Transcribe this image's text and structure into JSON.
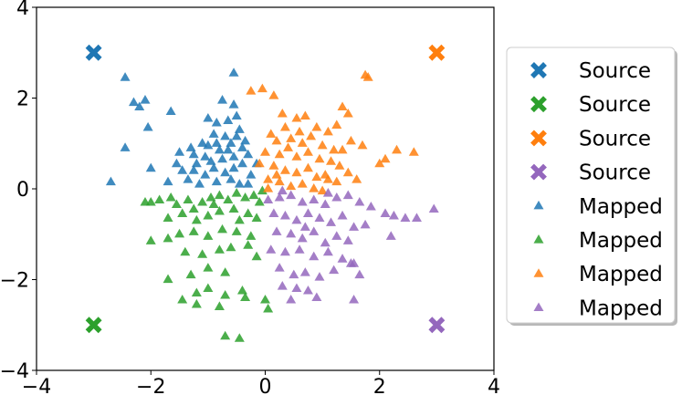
{
  "chart_data": {
    "type": "scatter",
    "xlim": [
      -4,
      4
    ],
    "ylim": [
      -4,
      4
    ],
    "xticks": [
      "−4",
      "−2",
      "0",
      "2",
      "4"
    ],
    "yticks": [
      "−4",
      "−2",
      "0",
      "2",
      "4"
    ],
    "grid": false,
    "legend_placement": "outside-right",
    "colors": {
      "blue": "#1f77b4",
      "green": "#2ca02c",
      "orange": "#ff7f0e",
      "purple": "#9467bd"
    },
    "series": [
      {
        "name": "Source",
        "marker": "x",
        "color": "#1f77b4",
        "points": [
          [
            -3,
            3
          ]
        ]
      },
      {
        "name": "Source",
        "marker": "x",
        "color": "#2ca02c",
        "points": [
          [
            -3,
            -3
          ]
        ]
      },
      {
        "name": "Source",
        "marker": "x",
        "color": "#ff7f0e",
        "points": [
          [
            3,
            3
          ]
        ]
      },
      {
        "name": "Source",
        "marker": "x",
        "color": "#9467bd",
        "points": [
          [
            3,
            -3
          ]
        ]
      },
      {
        "name": "Mapped",
        "marker": "triangle",
        "color": "#1f77b4",
        "points": [
          [
            -2.45,
            2.45
          ],
          [
            -2.3,
            1.9
          ],
          [
            -2.2,
            1.8
          ],
          [
            -2.1,
            1.95
          ],
          [
            -2.05,
            1.35
          ],
          [
            -1.65,
            1.7
          ],
          [
            -2.45,
            0.9
          ],
          [
            -2.7,
            0.15
          ],
          [
            -2.0,
            0.45
          ],
          [
            -0.55,
            2.55
          ],
          [
            -0.75,
            1.95
          ],
          [
            -0.55,
            1.85
          ],
          [
            -1.0,
            1.55
          ],
          [
            -0.85,
            1.45
          ],
          [
            -0.65,
            1.5
          ],
          [
            -0.5,
            1.6
          ],
          [
            -0.45,
            1.3
          ],
          [
            -0.9,
            1.2
          ],
          [
            -0.7,
            1.15
          ],
          [
            -1.1,
            1.0
          ],
          [
            -1.0,
            0.95
          ],
          [
            -0.8,
            0.85
          ],
          [
            -0.6,
            1.0
          ],
          [
            -0.4,
            0.9
          ],
          [
            -1.3,
            0.9
          ],
          [
            -1.5,
            0.8
          ],
          [
            -1.55,
            0.55
          ],
          [
            -1.45,
            0.4
          ],
          [
            -1.25,
            0.75
          ],
          [
            -1.2,
            0.55
          ],
          [
            -0.95,
            0.6
          ],
          [
            -0.75,
            0.65
          ],
          [
            -0.55,
            0.7
          ],
          [
            -0.35,
            1.05
          ],
          [
            -0.3,
            0.75
          ],
          [
            -1.35,
            0.2
          ],
          [
            -1.25,
            0.4
          ],
          [
            -1.05,
            0.3
          ],
          [
            -0.9,
            0.45
          ],
          [
            -0.7,
            0.35
          ],
          [
            -0.55,
            0.45
          ],
          [
            -0.4,
            0.55
          ],
          [
            -0.25,
            0.3
          ],
          [
            -0.15,
            0.55
          ],
          [
            -0.85,
            0.15
          ],
          [
            -0.6,
            0.2
          ],
          [
            -0.45,
            0.1
          ],
          [
            -1.7,
            0.15
          ],
          [
            -1.15,
            0.1
          ],
          [
            -0.3,
            0.1
          ],
          [
            -0.85,
            1.0
          ],
          [
            -0.65,
            0.85
          ],
          [
            -1.05,
            0.7
          ],
          [
            -0.5,
            1.15
          ]
        ]
      },
      {
        "name": "Mapped",
        "marker": "triangle",
        "color": "#2ca02c",
        "points": [
          [
            -2.1,
            -0.3
          ],
          [
            -2.0,
            -0.3
          ],
          [
            -1.85,
            -0.25
          ],
          [
            -1.65,
            -0.2
          ],
          [
            -1.55,
            -0.35
          ],
          [
            -1.35,
            -0.25
          ],
          [
            -1.25,
            -0.45
          ],
          [
            -1.1,
            -0.3
          ],
          [
            -0.95,
            -0.2
          ],
          [
            -0.8,
            -0.15
          ],
          [
            -0.65,
            -0.25
          ],
          [
            -0.5,
            -0.1
          ],
          [
            -0.35,
            -0.2
          ],
          [
            -0.2,
            -0.15
          ],
          [
            -0.1,
            -0.3
          ],
          [
            -1.7,
            -0.65
          ],
          [
            -1.45,
            -0.55
          ],
          [
            -1.2,
            -0.7
          ],
          [
            -1.0,
            -0.6
          ],
          [
            -0.8,
            -0.5
          ],
          [
            -0.55,
            -0.45
          ],
          [
            -0.3,
            -0.55
          ],
          [
            -0.15,
            -0.65
          ],
          [
            -2.0,
            -1.15
          ],
          [
            -1.7,
            -1.1
          ],
          [
            -1.5,
            -1.0
          ],
          [
            -1.25,
            -0.95
          ],
          [
            -1.0,
            -1.05
          ],
          [
            -0.75,
            -0.9
          ],
          [
            -0.5,
            -0.95
          ],
          [
            -0.25,
            -1.05
          ],
          [
            -1.4,
            -1.4
          ],
          [
            -1.1,
            -1.45
          ],
          [
            -0.8,
            -1.35
          ],
          [
            -0.6,
            -1.3
          ],
          [
            -0.3,
            -1.25
          ],
          [
            -0.15,
            -1.5
          ],
          [
            -1.3,
            -1.9
          ],
          [
            -1.0,
            -1.75
          ],
          [
            -0.7,
            -1.85
          ],
          [
            -1.7,
            -2.0
          ],
          [
            -1.2,
            -2.3
          ],
          [
            -1.0,
            -2.2
          ],
          [
            -0.7,
            -2.35
          ],
          [
            -0.4,
            -2.25
          ],
          [
            -1.45,
            -2.45
          ],
          [
            -1.2,
            -2.55
          ],
          [
            -0.8,
            -2.6
          ],
          [
            -0.35,
            -2.4
          ],
          [
            0.0,
            -2.45
          ],
          [
            0.05,
            -2.65
          ],
          [
            -0.7,
            -3.25
          ],
          [
            -0.45,
            -3.3
          ],
          [
            -0.05,
            -0.05
          ],
          [
            -0.45,
            -0.7
          ],
          [
            -0.9,
            -0.35
          ]
        ]
      },
      {
        "name": "Mapped",
        "marker": "triangle",
        "color": "#ff7f0e",
        "points": [
          [
            -0.25,
            2.15
          ],
          [
            -0.05,
            2.2
          ],
          [
            0.15,
            2.05
          ],
          [
            1.75,
            2.5
          ],
          [
            1.8,
            2.45
          ],
          [
            0.3,
            1.65
          ],
          [
            0.35,
            1.35
          ],
          [
            0.55,
            1.55
          ],
          [
            0.7,
            1.6
          ],
          [
            0.9,
            1.35
          ],
          [
            1.1,
            1.25
          ],
          [
            1.35,
            1.8
          ],
          [
            1.45,
            1.65
          ],
          [
            1.25,
            1.4
          ],
          [
            0.1,
            1.2
          ],
          [
            0.2,
            1.05
          ],
          [
            0.45,
            1.1
          ],
          [
            0.65,
            1.0
          ],
          [
            0.8,
            1.15
          ],
          [
            1.0,
            0.95
          ],
          [
            1.2,
            0.85
          ],
          [
            1.5,
            1.05
          ],
          [
            1.7,
            0.95
          ],
          [
            0.0,
            0.8
          ],
          [
            0.25,
            0.75
          ],
          [
            0.4,
            0.9
          ],
          [
            0.55,
            0.7
          ],
          [
            0.75,
            0.8
          ],
          [
            0.95,
            0.65
          ],
          [
            1.15,
            0.6
          ],
          [
            1.3,
            0.5
          ],
          [
            1.45,
            0.35
          ],
          [
            -0.1,
            0.55
          ],
          [
            0.15,
            0.5
          ],
          [
            0.35,
            0.4
          ],
          [
            0.55,
            0.35
          ],
          [
            0.75,
            0.45
          ],
          [
            0.9,
            0.25
          ],
          [
            1.05,
            0.3
          ],
          [
            1.25,
            0.15
          ],
          [
            0.05,
            0.2
          ],
          [
            0.25,
            0.15
          ],
          [
            0.45,
            0.05
          ],
          [
            0.65,
            0.1
          ],
          [
            0.85,
            0.0
          ],
          [
            1.0,
            -0.05
          ],
          [
            2.1,
            0.65
          ],
          [
            2.0,
            0.55
          ],
          [
            2.3,
            0.85
          ],
          [
            2.6,
            0.8
          ],
          [
            1.1,
            0.2
          ],
          [
            1.6,
            0.2
          ],
          [
            0.05,
            0.0
          ],
          [
            0.6,
            1.25
          ],
          [
            1.35,
            0.85
          ],
          [
            0.2,
            0.3
          ]
        ]
      },
      {
        "name": "Mapped",
        "marker": "triangle",
        "color": "#9467bd",
        "points": [
          [
            0.05,
            -0.25
          ],
          [
            0.25,
            -0.2
          ],
          [
            0.45,
            -0.15
          ],
          [
            0.65,
            -0.3
          ],
          [
            0.85,
            -0.25
          ],
          [
            1.05,
            -0.35
          ],
          [
            1.25,
            -0.2
          ],
          [
            1.45,
            -0.15
          ],
          [
            1.65,
            -0.3
          ],
          [
            1.85,
            -0.4
          ],
          [
            2.1,
            -0.55
          ],
          [
            2.25,
            -0.6
          ],
          [
            2.45,
            -0.65
          ],
          [
            2.65,
            -0.65
          ],
          [
            2.95,
            -0.45
          ],
          [
            0.15,
            -0.55
          ],
          [
            0.35,
            -0.6
          ],
          [
            0.55,
            -0.7
          ],
          [
            0.75,
            -0.55
          ],
          [
            0.95,
            -0.65
          ],
          [
            1.15,
            -0.75
          ],
          [
            1.35,
            -0.6
          ],
          [
            1.55,
            -0.85
          ],
          [
            1.75,
            -0.8
          ],
          [
            0.2,
            -0.95
          ],
          [
            0.45,
            -1.0
          ],
          [
            0.65,
            -1.1
          ],
          [
            0.85,
            -0.95
          ],
          [
            1.05,
            -1.2
          ],
          [
            1.25,
            -1.05
          ],
          [
            1.45,
            -1.15
          ],
          [
            2.2,
            -1.05
          ],
          [
            0.1,
            -1.35
          ],
          [
            0.35,
            -1.4
          ],
          [
            0.6,
            -1.35
          ],
          [
            0.85,
            -1.5
          ],
          [
            1.1,
            -1.4
          ],
          [
            1.35,
            -1.55
          ],
          [
            1.55,
            -1.65
          ],
          [
            0.25,
            -1.75
          ],
          [
            0.5,
            -1.9
          ],
          [
            0.7,
            -1.85
          ],
          [
            0.95,
            -1.95
          ],
          [
            1.2,
            -1.8
          ],
          [
            1.5,
            -1.65
          ],
          [
            1.65,
            -1.9
          ],
          [
            0.3,
            -2.15
          ],
          [
            0.55,
            -2.2
          ],
          [
            0.75,
            -2.25
          ],
          [
            0.45,
            -2.45
          ],
          [
            0.9,
            -2.4
          ],
          [
            1.55,
            -2.45
          ],
          [
            0.3,
            -0.05
          ],
          [
            0.7,
            -0.85
          ],
          [
            1.1,
            -0.1
          ]
        ]
      }
    ],
    "legend": [
      {
        "label": "Source",
        "marker": "x",
        "color": "#1f77b4"
      },
      {
        "label": "Source",
        "marker": "x",
        "color": "#2ca02c"
      },
      {
        "label": "Source",
        "marker": "x",
        "color": "#ff7f0e"
      },
      {
        "label": "Source",
        "marker": "x",
        "color": "#9467bd"
      },
      {
        "label": "Mapped",
        "marker": "triangle",
        "color": "#1f77b4"
      },
      {
        "label": "Mapped",
        "marker": "triangle",
        "color": "#2ca02c"
      },
      {
        "label": "Mapped",
        "marker": "triangle",
        "color": "#ff7f0e"
      },
      {
        "label": "Mapped",
        "marker": "triangle",
        "color": "#9467bd"
      }
    ]
  }
}
